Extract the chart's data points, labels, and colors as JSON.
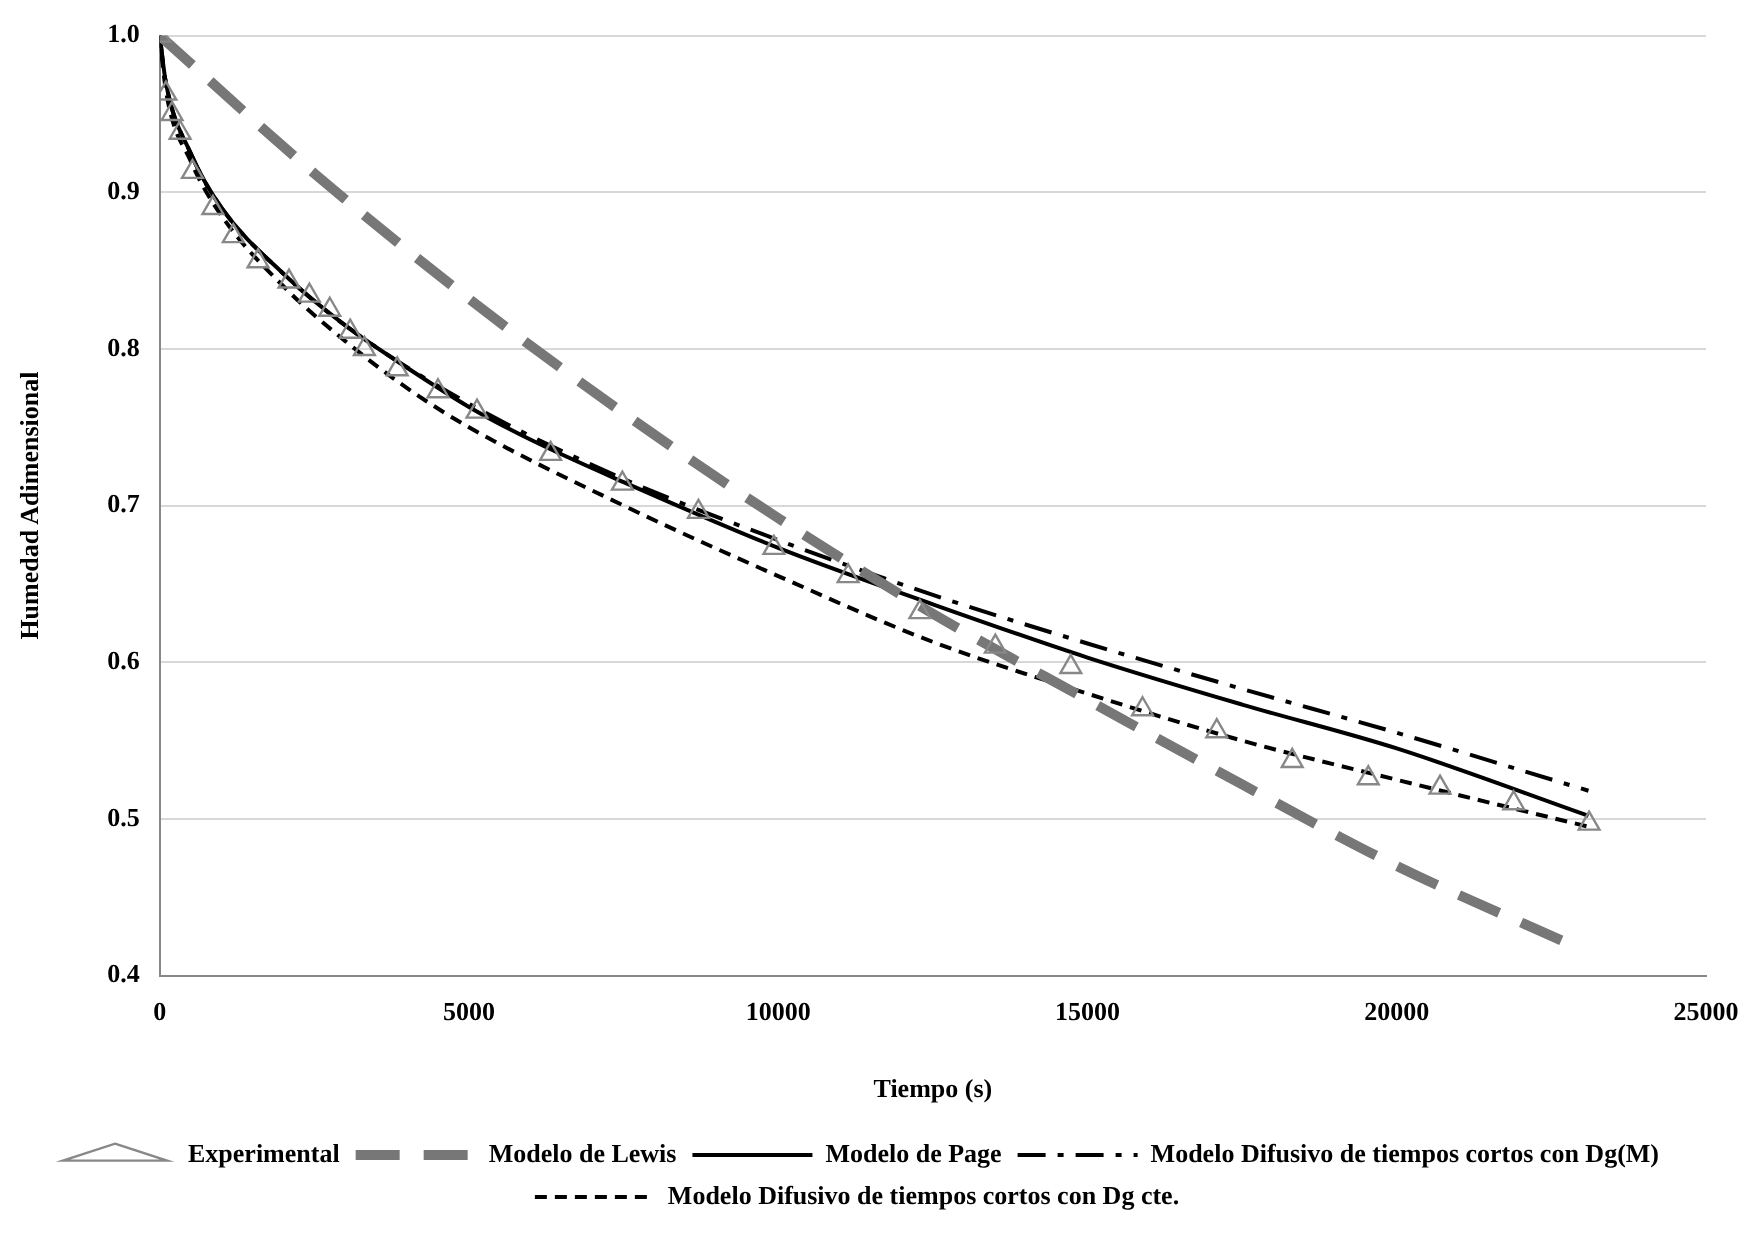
{
  "chart_data": {
    "type": "scatter",
    "xlabel": "Tiempo (s)",
    "ylabel": "Humedad Adimensional",
    "xlim": [
      0,
      25000
    ],
    "xticks": [
      0,
      5000,
      10000,
      15000,
      20000,
      25000
    ],
    "ylim": [
      0.4,
      1.0
    ],
    "yticks": [
      {
        "value": 0.4,
        "label": "0.4"
      },
      {
        "value": 0.5,
        "label": "0.5"
      },
      {
        "value": 0.6,
        "label": "0.6"
      },
      {
        "value": 0.7,
        "label": "0.7"
      },
      {
        "value": 0.8,
        "label": "0.8"
      },
      {
        "value": 0.9,
        "label": "0.9"
      },
      {
        "value": 1.0,
        "label": "1.0"
      }
    ],
    "grid": "y",
    "legend": "bottom",
    "series": [
      {
        "name": "Experimental",
        "marker": "triangle",
        "color": "#888888",
        "x": [
          0,
          100,
          200,
          330,
          530,
          860,
          1190,
          1590,
          2090,
          2420,
          2750,
          3080,
          3310,
          3840,
          4500,
          5130,
          6320,
          7480,
          8710,
          9930,
          11130,
          12290,
          13510,
          14730,
          15890,
          17090,
          18310,
          19540,
          20700,
          21890,
          23110
        ],
        "values": [
          1.0,
          0.963,
          0.95,
          0.938,
          0.913,
          0.89,
          0.872,
          0.856,
          0.843,
          0.834,
          0.825,
          0.811,
          0.8,
          0.787,
          0.773,
          0.76,
          0.733,
          0.714,
          0.696,
          0.673,
          0.655,
          0.632,
          0.61,
          0.597,
          0.57,
          0.556,
          0.537,
          0.526,
          0.52,
          0.51,
          0.497
        ]
      },
      {
        "name": "Modelo de Lewis",
        "type": "line",
        "marker": "none",
        "line_style": "dashed",
        "color": "#777777",
        "x": [
          0,
          2500,
          5000,
          7500,
          10000,
          12500,
          15000,
          17500,
          20000,
          22800
        ],
        "values": [
          1.0,
          0.912,
          0.832,
          0.759,
          0.692,
          0.631,
          0.576,
          0.522,
          0.47,
          0.42
        ]
      },
      {
        "name": "Modelo de Page",
        "type": "line",
        "marker": "none",
        "line_style": "solid",
        "color": "#000000",
        "x": [
          0,
          100,
          500,
          1000,
          2000,
          3000,
          4000,
          5000,
          6000,
          7500,
          10000,
          12500,
          15000,
          17500,
          20000,
          23100
        ],
        "values": [
          1.0,
          0.97,
          0.925,
          0.89,
          0.848,
          0.815,
          0.788,
          0.763,
          0.742,
          0.715,
          0.673,
          0.637,
          0.603,
          0.573,
          0.545,
          0.502
        ]
      },
      {
        "name": "Modelo Difusivo de tiempos cortos con Dg(M)",
        "type": "line",
        "marker": "none",
        "line_style": "dashdot",
        "color": "#000000",
        "x": [
          0,
          100,
          500,
          1000,
          2000,
          3000,
          5000,
          7500,
          10000,
          12500,
          15000,
          17500,
          20000,
          23100
        ],
        "values": [
          1.0,
          0.97,
          0.925,
          0.89,
          0.848,
          0.815,
          0.765,
          0.717,
          0.678,
          0.643,
          0.612,
          0.583,
          0.555,
          0.518
        ]
      },
      {
        "name": "Modelo Difusivo de tiempos cortos con Dg cte.",
        "type": "line",
        "marker": "none",
        "line_style": "dashed",
        "color": "#000000",
        "x": [
          0,
          100,
          500,
          1000,
          2000,
          3000,
          4000,
          5000,
          7500,
          10000,
          12500,
          15000,
          17500,
          20000,
          23100
        ],
        "values": [
          1.0,
          0.965,
          0.92,
          0.885,
          0.84,
          0.805,
          0.775,
          0.75,
          0.7,
          0.655,
          0.613,
          0.58,
          0.55,
          0.525,
          0.495
        ]
      }
    ]
  }
}
